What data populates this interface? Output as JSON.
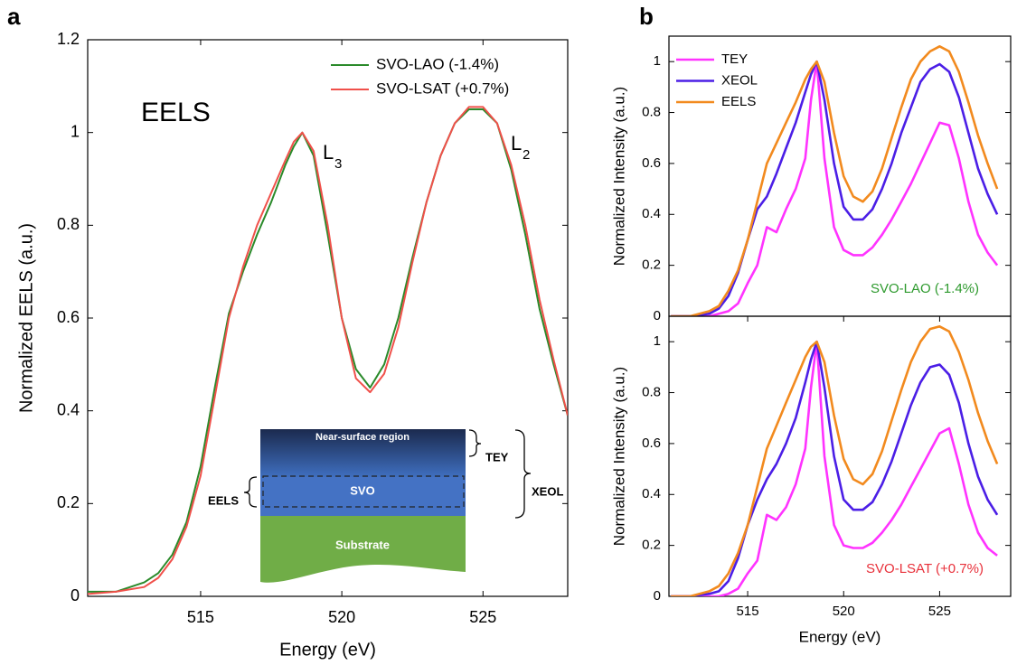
{
  "chart_data": [
    {
      "type": "line",
      "panel_label": "a",
      "xlabel": "Energy (eV)",
      "ylabel": "Normalized EELS (a.u.)",
      "xlim": [
        511,
        528
      ],
      "ylim": [
        0,
        1.2
      ],
      "xticks": [
        515,
        520,
        525
      ],
      "yticks": [
        0,
        0.2,
        0.4,
        0.6,
        0.8,
        1,
        1.2
      ],
      "legend": "upper right",
      "annotations": [
        "EELS"
      ],
      "peak_labels": [
        {
          "text": "L",
          "subscript": "3"
        },
        {
          "text": "L",
          "subscript": "2"
        }
      ],
      "inset": {
        "layers": [
          "Near-surface region",
          "SVO",
          "Substrate"
        ],
        "probes": [
          "TEY",
          "XEOL",
          "EELS"
        ]
      },
      "x": [
        511,
        512,
        513,
        513.5,
        514,
        514.5,
        515,
        515.5,
        516,
        516.5,
        517,
        517.5,
        518,
        518.3,
        518.6,
        519,
        519.5,
        520,
        520.5,
        521,
        521.5,
        522,
        522.5,
        523,
        523.5,
        524,
        524.5,
        525,
        525.5,
        526,
        526.5,
        527,
        527.5,
        528
      ],
      "series": [
        {
          "name": "SVO-LAO (-1.4%)",
          "color": "#2a8a2a",
          "values": [
            0.01,
            0.01,
            0.03,
            0.05,
            0.09,
            0.16,
            0.28,
            0.45,
            0.61,
            0.7,
            0.78,
            0.85,
            0.93,
            0.97,
            1.0,
            0.95,
            0.78,
            0.6,
            0.49,
            0.45,
            0.5,
            0.6,
            0.73,
            0.85,
            0.95,
            1.02,
            1.05,
            1.05,
            1.02,
            0.92,
            0.78,
            0.62,
            0.5,
            0.39
          ]
        },
        {
          "name": "SVO-LSAT (+0.7%)",
          "color": "#f0504a",
          "values": [
            0.005,
            0.01,
            0.02,
            0.04,
            0.08,
            0.15,
            0.26,
            0.43,
            0.6,
            0.71,
            0.8,
            0.87,
            0.94,
            0.98,
            1.0,
            0.96,
            0.8,
            0.6,
            0.47,
            0.44,
            0.48,
            0.58,
            0.72,
            0.85,
            0.95,
            1.02,
            1.055,
            1.055,
            1.02,
            0.93,
            0.8,
            0.64,
            0.51,
            0.39
          ]
        }
      ]
    },
    {
      "type": "line",
      "panel_label": "b",
      "ylabel": "Normalized Intensity (a.u.)",
      "xlim": [
        510.9,
        528.7
      ],
      "ylim": [
        0,
        1.1
      ],
      "yticks": [
        0,
        0.2,
        0.4,
        0.6,
        0.8,
        1
      ],
      "legend": "upper left",
      "annotation": {
        "text": "SVO-LAO (-1.4%)",
        "color": "#2e9a2e"
      },
      "x": [
        511,
        512,
        513,
        513.5,
        514,
        514.5,
        515,
        515.5,
        516,
        516.5,
        517,
        517.5,
        518,
        518.3,
        518.6,
        519,
        519.5,
        520,
        520.5,
        521,
        521.5,
        522,
        522.5,
        523,
        523.5,
        524,
        524.5,
        525,
        525.5,
        526,
        526.5,
        527,
        527.5,
        528
      ],
      "series": [
        {
          "name": "TEY",
          "color": "#ff33ff",
          "values": [
            0,
            0,
            0,
            0.01,
            0.02,
            0.05,
            0.13,
            0.2,
            0.35,
            0.33,
            0.42,
            0.5,
            0.62,
            0.85,
            1.0,
            0.62,
            0.35,
            0.26,
            0.24,
            0.24,
            0.27,
            0.32,
            0.38,
            0.45,
            0.52,
            0.6,
            0.68,
            0.76,
            0.75,
            0.62,
            0.45,
            0.32,
            0.25,
            0.2
          ]
        },
        {
          "name": "XEOL",
          "color": "#4b1ee6",
          "values": [
            0,
            0,
            0.01,
            0.03,
            0.08,
            0.17,
            0.3,
            0.42,
            0.47,
            0.56,
            0.66,
            0.76,
            0.88,
            0.95,
            1.0,
            0.85,
            0.6,
            0.43,
            0.38,
            0.38,
            0.42,
            0.5,
            0.6,
            0.72,
            0.82,
            0.92,
            0.97,
            0.99,
            0.96,
            0.86,
            0.72,
            0.58,
            0.48,
            0.4
          ]
        },
        {
          "name": "EELS",
          "color": "#f28a1e",
          "values": [
            0,
            0,
            0.02,
            0.04,
            0.1,
            0.18,
            0.3,
            0.45,
            0.6,
            0.68,
            0.76,
            0.84,
            0.93,
            0.97,
            1.0,
            0.92,
            0.72,
            0.55,
            0.47,
            0.45,
            0.49,
            0.58,
            0.7,
            0.82,
            0.93,
            1.0,
            1.04,
            1.06,
            1.04,
            0.96,
            0.84,
            0.71,
            0.6,
            0.5
          ]
        }
      ]
    },
    {
      "type": "line",
      "xlabel": "Energy (eV)",
      "ylabel": "Normalized Intensity (a.u.)",
      "xlim": [
        510.9,
        528.7
      ],
      "ylim": [
        0,
        1.1
      ],
      "xticks": [
        515,
        520,
        525
      ],
      "yticks": [
        0,
        0.2,
        0.4,
        0.6,
        0.8,
        1
      ],
      "annotation": {
        "text": "SVO-LSAT (+0.7%)",
        "color": "#e8303a"
      },
      "x": [
        511,
        512,
        513,
        513.5,
        514,
        514.5,
        515,
        515.5,
        516,
        516.5,
        517,
        517.5,
        518,
        518.3,
        518.6,
        519,
        519.5,
        520,
        520.5,
        521,
        521.5,
        522,
        522.5,
        523,
        523.5,
        524,
        524.5,
        525,
        525.5,
        526,
        526.5,
        527,
        527.5,
        528
      ],
      "series": [
        {
          "color": "#ff33ff",
          "values": [
            0,
            0,
            0,
            0,
            0.01,
            0.03,
            0.09,
            0.14,
            0.32,
            0.3,
            0.35,
            0.44,
            0.58,
            0.82,
            1.0,
            0.55,
            0.28,
            0.2,
            0.19,
            0.19,
            0.21,
            0.25,
            0.3,
            0.36,
            0.43,
            0.5,
            0.57,
            0.64,
            0.66,
            0.52,
            0.36,
            0.25,
            0.19,
            0.16
          ]
        },
        {
          "color": "#4b1ee6",
          "values": [
            0,
            0,
            0.01,
            0.02,
            0.06,
            0.15,
            0.28,
            0.38,
            0.46,
            0.52,
            0.6,
            0.7,
            0.84,
            0.93,
            1.0,
            0.82,
            0.55,
            0.38,
            0.34,
            0.34,
            0.37,
            0.44,
            0.53,
            0.64,
            0.75,
            0.84,
            0.9,
            0.91,
            0.87,
            0.76,
            0.6,
            0.47,
            0.38,
            0.32
          ]
        },
        {
          "color": "#f28a1e",
          "values": [
            0,
            0,
            0.02,
            0.04,
            0.09,
            0.17,
            0.28,
            0.43,
            0.58,
            0.67,
            0.76,
            0.85,
            0.94,
            0.98,
            1.0,
            0.92,
            0.71,
            0.54,
            0.46,
            0.44,
            0.48,
            0.57,
            0.69,
            0.81,
            0.92,
            1.0,
            1.05,
            1.06,
            1.04,
            0.96,
            0.85,
            0.72,
            0.61,
            0.52
          ]
        }
      ]
    }
  ]
}
